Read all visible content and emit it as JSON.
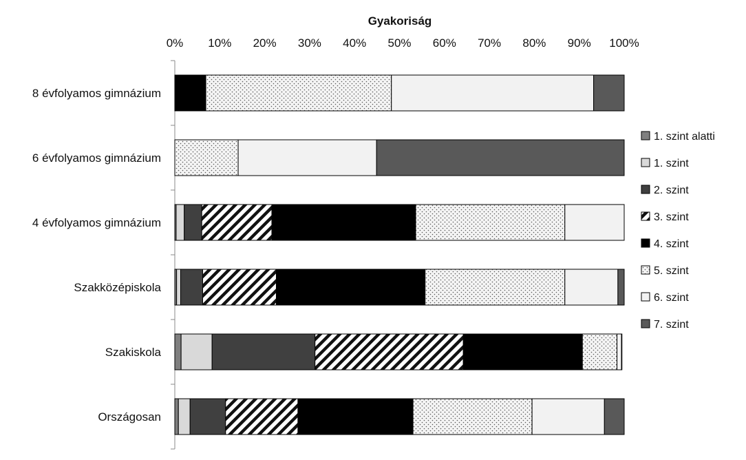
{
  "chart_data": {
    "type": "bar",
    "orientation": "horizontal",
    "stacked": true,
    "percent_stacked": true,
    "title": "Gyakoriság",
    "xlabel": "",
    "ylabel": "",
    "xlim": [
      0,
      100
    ],
    "x_ticks": [
      "0%",
      "10%",
      "20%",
      "30%",
      "40%",
      "50%",
      "60%",
      "70%",
      "80%",
      "90%",
      "100%"
    ],
    "legend_position": "right",
    "grid": false,
    "categories": [
      "8 évfolyamos gimnázium",
      "6 évfolyamos gimnázium",
      "4 évfolyamos gimnázium",
      "Szakközépiskola",
      "Szakiskola",
      "Országosan"
    ],
    "series": [
      {
        "name": "1. szint alatti",
        "pattern": "solid-mid-gray",
        "values": [
          0,
          0,
          0.3,
          0.4,
          1.4,
          0.8
        ]
      },
      {
        "name": "1. szint",
        "pattern": "solid-light-gray",
        "values": [
          0,
          0,
          1.8,
          0.9,
          6.9,
          2.6
        ]
      },
      {
        "name": "2. szint",
        "pattern": "solid-dark-gray",
        "values": [
          0,
          0,
          3.9,
          4.9,
          22.9,
          7.9
        ]
      },
      {
        "name": "3. szint",
        "pattern": "diagonal-hatch",
        "values": [
          0,
          0,
          15.6,
          16.4,
          33.0,
          16.1
        ]
      },
      {
        "name": "4. szint",
        "pattern": "solid-black",
        "values": [
          6.9,
          0,
          32.0,
          33.1,
          26.5,
          25.6
        ]
      },
      {
        "name": "5. szint",
        "pattern": "dotted",
        "values": [
          41.3,
          14.1,
          33.2,
          31.1,
          7.7,
          26.5
        ]
      },
      {
        "name": "6. szint",
        "pattern": "very-light-gray",
        "values": [
          45.0,
          30.8,
          13.2,
          11.8,
          1.0,
          16.1
        ]
      },
      {
        "name": "7. szint",
        "pattern": "solid-dark-gray-2",
        "values": [
          6.8,
          55.1,
          0,
          1.4,
          0.1,
          4.4
        ]
      }
    ]
  }
}
